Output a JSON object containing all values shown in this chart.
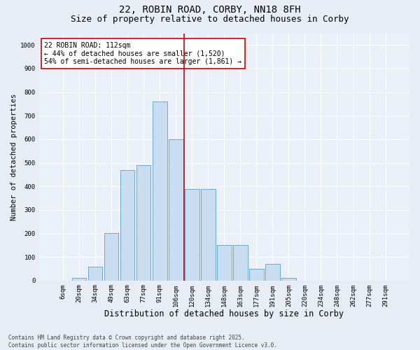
{
  "title1": "22, ROBIN ROAD, CORBY, NN18 8FH",
  "title2": "Size of property relative to detached houses in Corby",
  "xlabel": "Distribution of detached houses by size in Corby",
  "ylabel": "Number of detached properties",
  "bar_labels": [
    "6sqm",
    "20sqm",
    "34sqm",
    "49sqm",
    "63sqm",
    "77sqm",
    "91sqm",
    "106sqm",
    "120sqm",
    "134sqm",
    "148sqm",
    "163sqm",
    "177sqm",
    "191sqm",
    "205sqm",
    "220sqm",
    "234sqm",
    "248sqm",
    "262sqm",
    "277sqm",
    "291sqm"
  ],
  "bar_values": [
    0,
    10,
    60,
    200,
    470,
    490,
    760,
    600,
    390,
    390,
    150,
    150,
    50,
    70,
    10,
    0,
    0,
    0,
    0,
    0,
    0
  ],
  "bar_color": "#c9ddf0",
  "bar_edge_color": "#6aaad4",
  "vline_color": "#cc0000",
  "annotation_text": "22 ROBIN ROAD: 112sqm\n← 44% of detached houses are smaller (1,520)\n54% of semi-detached houses are larger (1,861) →",
  "annotation_box_color": "#ffffff",
  "annotation_box_edge_color": "#cc0000",
  "ylim": [
    0,
    1050
  ],
  "yticks": [
    0,
    100,
    200,
    300,
    400,
    500,
    600,
    700,
    800,
    900,
    1000
  ],
  "bg_color": "#e8edf5",
  "plot_bg_color": "#eaf0f8",
  "footer_text": "Contains HM Land Registry data © Crown copyright and database right 2025.\nContains public sector information licensed under the Open Government Licence v3.0.",
  "title1_fontsize": 10,
  "title2_fontsize": 9,
  "xlabel_fontsize": 8.5,
  "ylabel_fontsize": 7.5,
  "tick_fontsize": 6.5,
  "annotation_fontsize": 7,
  "footer_fontsize": 5.5
}
